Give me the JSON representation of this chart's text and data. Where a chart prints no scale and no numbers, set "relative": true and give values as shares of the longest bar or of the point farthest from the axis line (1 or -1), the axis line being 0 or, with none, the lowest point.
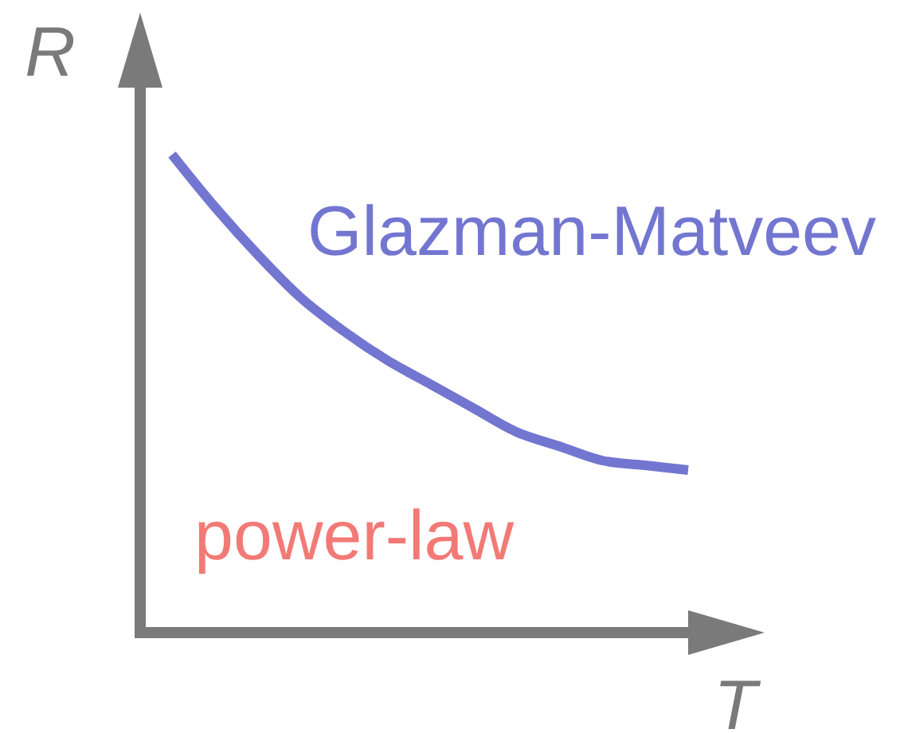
{
  "chart_data": {
    "type": "line",
    "xlabel": "T",
    "ylabel": "R",
    "relative": true,
    "categories": [
      null,
      null,
      null,
      null,
      null,
      null,
      null,
      null,
      null,
      null,
      null,
      null,
      null
    ],
    "series": [
      {
        "name": "Glazman-Matveev",
        "color": "#7376d0",
        "values": [
          1,
          0.89,
          0.79,
          0.7,
          0.63,
          0.57,
          0.52,
          0.47,
          0.42,
          0.39,
          0.36,
          0.35,
          0.34
        ]
      }
    ],
    "annotations": [
      "power-law"
    ]
  }
}
